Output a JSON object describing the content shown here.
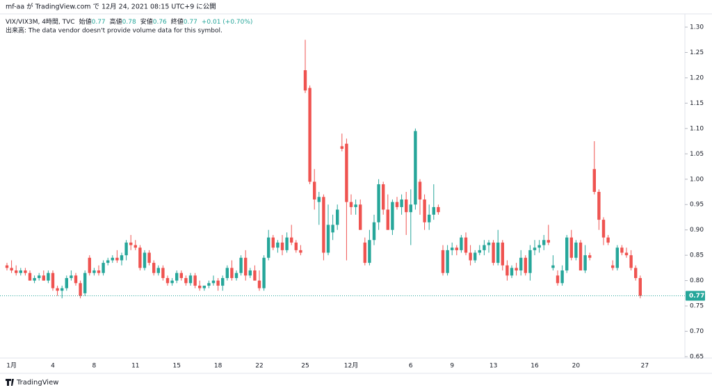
{
  "header": {
    "published": "mf-aa が TradingView.com で 12月 24, 2021 08:15 UTC+9 に公開"
  },
  "legend": {
    "symbol": "VIX/VIX3M, 4時間, TVC",
    "open_label": "始値",
    "open": 0.77,
    "high_label": "高値",
    "high": 0.78,
    "low_label": "安値",
    "low": 0.76,
    "close_label": "終値",
    "close": 0.77,
    "change": "+0.01 (+0.70%)",
    "volume_note": "出来高: The data vendor doesn't provide volume data for this symbol."
  },
  "footer": {
    "brand": "TradingView"
  },
  "chart_data": {
    "type": "candlestick",
    "up_color": "#26a69a",
    "down_color": "#ef5350",
    "last_price": 0.77,
    "ylim": [
      0.65,
      1.3
    ],
    "yticks": [
      {
        "value": 0.65,
        "label": "0.65"
      },
      {
        "value": 0.7,
        "label": "0.70"
      },
      {
        "value": 0.75,
        "label": "0.75"
      },
      {
        "value": 0.8,
        "label": "0.80"
      },
      {
        "value": 0.85,
        "label": "0.85"
      },
      {
        "value": 0.9,
        "label": "0.90"
      },
      {
        "value": 0.95,
        "label": "0.95"
      },
      {
        "value": 1.0,
        "label": "1.00"
      },
      {
        "value": 1.05,
        "label": "1.05"
      },
      {
        "value": 1.1,
        "label": "1.10"
      },
      {
        "value": 1.15,
        "label": "1.15"
      },
      {
        "value": 1.2,
        "label": "1.20"
      },
      {
        "value": 1.25,
        "label": "1.25"
      },
      {
        "value": 1.3,
        "label": "1.30"
      }
    ],
    "categories": [
      null,
      "1月",
      null,
      null,
      null,
      null,
      null,
      null,
      null,
      null,
      "4",
      null,
      null,
      null,
      null,
      null,
      null,
      null,
      null,
      "8",
      null,
      null,
      null,
      null,
      null,
      null,
      null,
      null,
      "11",
      null,
      null,
      null,
      null,
      null,
      null,
      null,
      null,
      "15",
      null,
      null,
      null,
      null,
      null,
      null,
      null,
      null,
      "18",
      null,
      null,
      null,
      null,
      null,
      null,
      null,
      null,
      "22",
      null,
      null,
      null,
      null,
      null,
      null,
      null,
      null,
      null,
      "25",
      null,
      null,
      null,
      null,
      null,
      null,
      null,
      null,
      null,
      "12月",
      null,
      null,
      null,
      null,
      null,
      null,
      null,
      null,
      null,
      null,
      null,
      null,
      "6",
      null,
      null,
      null,
      null,
      null,
      null,
      null,
      null,
      "9",
      null,
      null,
      null,
      null,
      null,
      null,
      null,
      null,
      "13",
      null,
      null,
      null,
      null,
      null,
      null,
      null,
      null,
      "16",
      null,
      null,
      null,
      null,
      null,
      null,
      null,
      null,
      "20",
      null,
      null,
      null,
      null,
      null,
      null,
      null,
      null,
      null,
      null,
      null,
      null,
      null,
      null,
      "27"
    ],
    "open": [
      0.83,
      0.825,
      0.82,
      0.815,
      0.82,
      0.815,
      0.8,
      0.805,
      0.81,
      0.8,
      0.815,
      0.785,
      0.78,
      0.785,
      0.805,
      0.81,
      0.795,
      0.775,
      0.845,
      0.815,
      0.82,
      0.815,
      0.835,
      0.84,
      0.845,
      0.84,
      0.85,
      0.875,
      0.87,
      0.865,
      0.825,
      0.855,
      0.835,
      0.815,
      0.825,
      0.805,
      0.795,
      0.8,
      0.815,
      0.805,
      0.795,
      0.81,
      0.79,
      0.785,
      0.79,
      0.795,
      0.8,
      0.79,
      0.805,
      0.825,
      0.805,
      0.815,
      0.845,
      0.81,
      0.82,
      0.8,
      0.785,
      0.845,
      0.885,
      0.865,
      0.875,
      0.86,
      0.885,
      0.875,
      0.86,
      1.215,
      1.18,
      0.995,
      0.955,
      0.965,
      0.855,
      0.895,
      0.91,
      1.065,
      1.07,
      0.955,
      0.945,
      0.95,
      0.875,
      0.835,
      0.88,
      0.915,
      0.99,
      0.94,
      0.9,
      0.955,
      0.945,
      0.96,
      0.935,
      0.95,
      0.995,
      0.96,
      0.915,
      0.93,
      0.945,
      0.86,
      0.815,
      0.86,
      0.865,
      0.86,
      0.885,
      0.855,
      0.84,
      0.855,
      0.86,
      0.87,
      0.875,
      0.835,
      0.875,
      0.83,
      0.81,
      0.825,
      0.82,
      0.845,
      0.815,
      0.86,
      0.865,
      0.87,
      0.88,
      0.825,
      0.81,
      0.795,
      0.82,
      0.885,
      0.845,
      0.875,
      0.82,
      0.85,
      1.02,
      0.975,
      0.92,
      0.885,
      0.83,
      0.825,
      0.865,
      0.855,
      0.85,
      0.825,
      0.805,
      null
    ],
    "high": [
      0.835,
      0.84,
      0.83,
      0.825,
      0.825,
      0.82,
      0.81,
      0.815,
      0.82,
      0.82,
      0.82,
      0.79,
      0.79,
      0.81,
      0.82,
      0.815,
      0.8,
      0.82,
      0.85,
      0.825,
      0.83,
      0.84,
      0.845,
      0.85,
      0.86,
      0.855,
      0.88,
      0.89,
      0.88,
      0.87,
      0.86,
      0.86,
      0.84,
      0.83,
      0.83,
      0.81,
      0.805,
      0.82,
      0.82,
      0.81,
      0.815,
      0.815,
      0.8,
      0.79,
      0.8,
      0.81,
      0.805,
      0.81,
      0.83,
      0.84,
      0.82,
      0.85,
      0.86,
      0.825,
      0.83,
      0.82,
      0.85,
      0.9,
      0.89,
      0.88,
      0.89,
      0.895,
      0.91,
      0.88,
      0.87,
      1.275,
      1.185,
      1.02,
      0.975,
      0.97,
      0.95,
      0.93,
      0.95,
      1.09,
      1.08,
      0.97,
      0.96,
      0.96,
      0.885,
      0.9,
      0.93,
      1.0,
      0.995,
      0.97,
      0.96,
      0.965,
      0.97,
      0.975,
      0.98,
      1.1,
      1.0,
      0.97,
      0.95,
      0.99,
      0.95,
      0.87,
      0.87,
      0.875,
      0.87,
      0.89,
      0.895,
      0.87,
      0.86,
      0.87,
      0.88,
      0.88,
      0.88,
      0.9,
      0.88,
      0.84,
      0.83,
      0.835,
      0.86,
      0.85,
      0.87,
      0.88,
      0.88,
      0.89,
      0.91,
      0.85,
      0.82,
      0.83,
      0.89,
      0.9,
      0.88,
      0.88,
      0.87,
      0.855,
      1.075,
      0.98,
      0.925,
      0.89,
      0.84,
      0.87,
      0.87,
      0.865,
      0.86,
      0.83,
      0.81,
      null
    ],
    "low": [
      0.82,
      0.815,
      0.81,
      0.81,
      0.81,
      0.8,
      0.795,
      0.8,
      0.8,
      0.795,
      0.78,
      0.77,
      0.765,
      0.78,
      0.8,
      0.79,
      0.765,
      0.77,
      0.81,
      0.81,
      0.81,
      0.81,
      0.83,
      0.835,
      0.835,
      0.83,
      0.84,
      0.86,
      0.86,
      0.82,
      0.82,
      0.83,
      0.81,
      0.81,
      0.8,
      0.79,
      0.79,
      0.795,
      0.8,
      0.79,
      0.79,
      0.785,
      0.78,
      0.78,
      0.785,
      0.79,
      0.78,
      0.78,
      0.8,
      0.8,
      0.8,
      0.81,
      0.8,
      0.805,
      0.8,
      0.78,
      0.78,
      0.84,
      0.86,
      0.855,
      0.85,
      0.855,
      0.87,
      0.855,
      0.85,
      1.17,
      0.99,
      0.94,
      0.91,
      0.84,
      0.85,
      0.88,
      0.9,
      1.055,
      0.84,
      0.93,
      0.93,
      0.9,
      0.83,
      0.83,
      0.87,
      0.9,
      0.93,
      0.9,
      0.89,
      0.94,
      0.93,
      0.89,
      0.87,
      0.94,
      0.93,
      0.9,
      0.9,
      0.92,
      0.93,
      0.81,
      0.81,
      0.85,
      0.85,
      0.855,
      0.85,
      0.83,
      0.835,
      0.85,
      0.85,
      0.855,
      0.83,
      0.83,
      0.82,
      0.8,
      0.805,
      0.81,
      0.81,
      0.81,
      0.8,
      0.85,
      0.855,
      0.86,
      0.87,
      0.82,
      0.79,
      0.79,
      0.815,
      0.84,
      0.84,
      0.82,
      0.815,
      0.84,
      0.97,
      0.9,
      0.87,
      0.87,
      0.82,
      0.82,
      0.85,
      0.845,
      0.82,
      0.8,
      0.765,
      null
    ],
    "close": [
      0.825,
      0.82,
      0.815,
      0.82,
      0.815,
      0.8,
      0.805,
      0.81,
      0.8,
      0.815,
      0.785,
      0.78,
      0.785,
      0.805,
      0.81,
      0.795,
      0.77,
      0.815,
      0.815,
      0.82,
      0.815,
      0.835,
      0.84,
      0.845,
      0.84,
      0.85,
      0.875,
      0.87,
      0.865,
      0.825,
      0.855,
      0.835,
      0.815,
      0.825,
      0.805,
      0.795,
      0.8,
      0.815,
      0.805,
      0.795,
      0.81,
      0.79,
      0.785,
      0.79,
      0.795,
      0.8,
      0.79,
      0.805,
      0.825,
      0.805,
      0.815,
      0.845,
      0.81,
      0.82,
      0.8,
      0.785,
      0.845,
      0.885,
      0.865,
      0.875,
      0.86,
      0.885,
      0.875,
      0.86,
      0.855,
      1.175,
      0.995,
      0.96,
      0.965,
      0.855,
      0.91,
      0.91,
      0.94,
      1.06,
      0.955,
      0.945,
      0.95,
      0.9,
      0.835,
      0.88,
      0.915,
      0.99,
      0.94,
      0.9,
      0.955,
      0.945,
      0.96,
      0.935,
      0.95,
      1.095,
      0.96,
      0.915,
      0.93,
      0.945,
      0.935,
      0.815,
      0.86,
      0.865,
      0.86,
      0.885,
      0.855,
      0.84,
      0.855,
      0.86,
      0.87,
      0.875,
      0.835,
      0.875,
      0.83,
      0.81,
      0.825,
      0.82,
      0.845,
      0.815,
      0.86,
      0.865,
      0.87,
      0.88,
      0.875,
      0.83,
      0.795,
      0.82,
      0.885,
      0.845,
      0.875,
      0.82,
      0.85,
      0.845,
      0.975,
      0.92,
      0.885,
      0.875,
      0.825,
      0.865,
      0.855,
      0.85,
      0.825,
      0.805,
      0.77,
      null
    ]
  }
}
